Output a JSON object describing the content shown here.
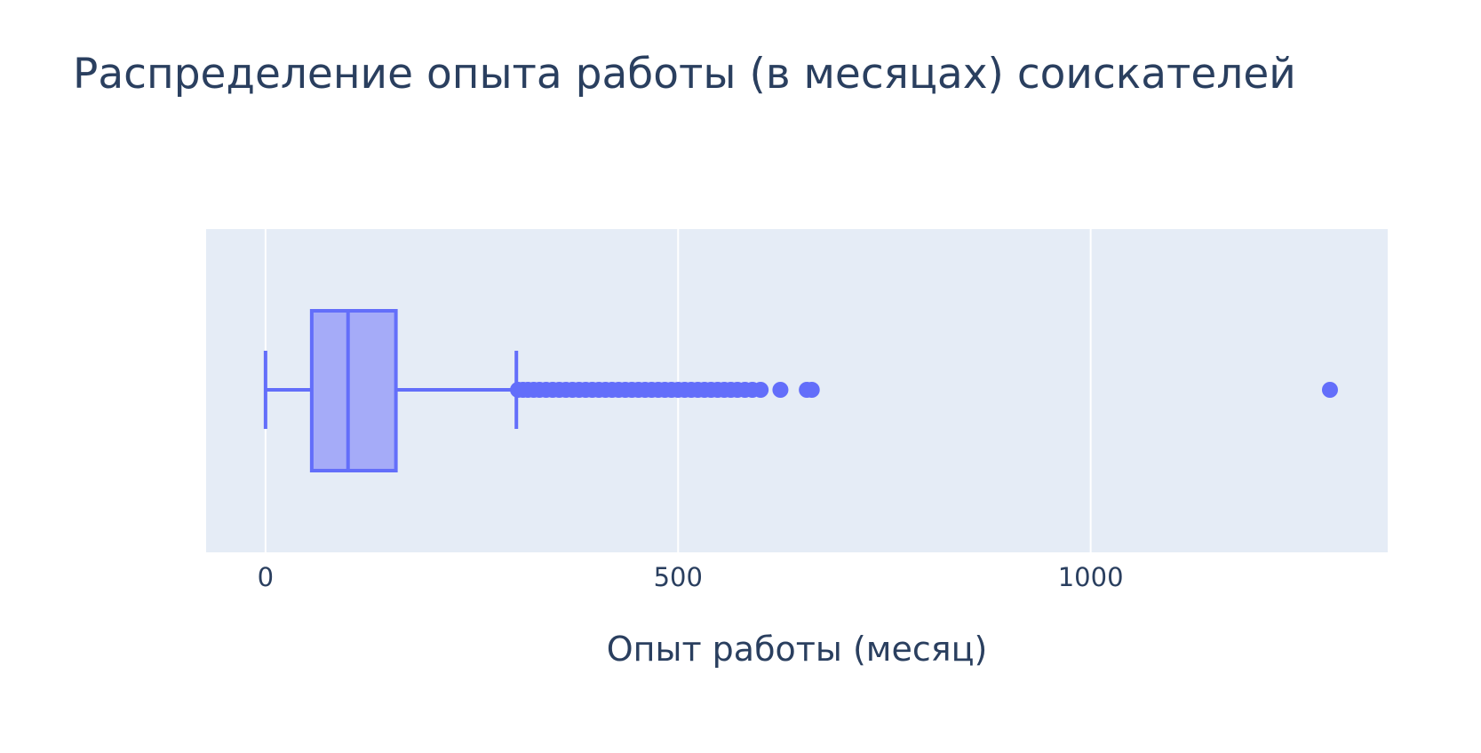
{
  "chart_data": {
    "type": "box",
    "title": "Распределение опыта работы (в месяцах) соискателей",
    "xlabel": "Опыт работы (месяц)",
    "ylabel": "",
    "orientation": "horizontal",
    "xlim": [
      -72,
      1360
    ],
    "x_ticks": [
      0,
      500,
      1000
    ],
    "x_tick_labels": [
      "0",
      "500",
      "1000"
    ],
    "grid": true,
    "box": {
      "lower_fence": 0,
      "q1": 56,
      "median": 100,
      "q3": 158,
      "upper_fence": 304
    },
    "outliers": [
      306,
      312,
      318,
      325,
      332,
      340,
      348,
      356,
      364,
      372,
      380,
      388,
      396,
      404,
      412,
      420,
      428,
      436,
      444,
      452,
      460,
      468,
      476,
      484,
      492,
      500,
      508,
      516,
      524,
      532,
      540,
      548,
      556,
      564,
      572,
      581,
      590,
      600,
      624,
      656,
      662,
      1290
    ],
    "colors": {
      "box_line": "#636efa",
      "box_fill": "#a5abf8",
      "plot_bg": "#e5ecf6",
      "grid": "#ffffff",
      "text": "#2a3f5f"
    }
  }
}
